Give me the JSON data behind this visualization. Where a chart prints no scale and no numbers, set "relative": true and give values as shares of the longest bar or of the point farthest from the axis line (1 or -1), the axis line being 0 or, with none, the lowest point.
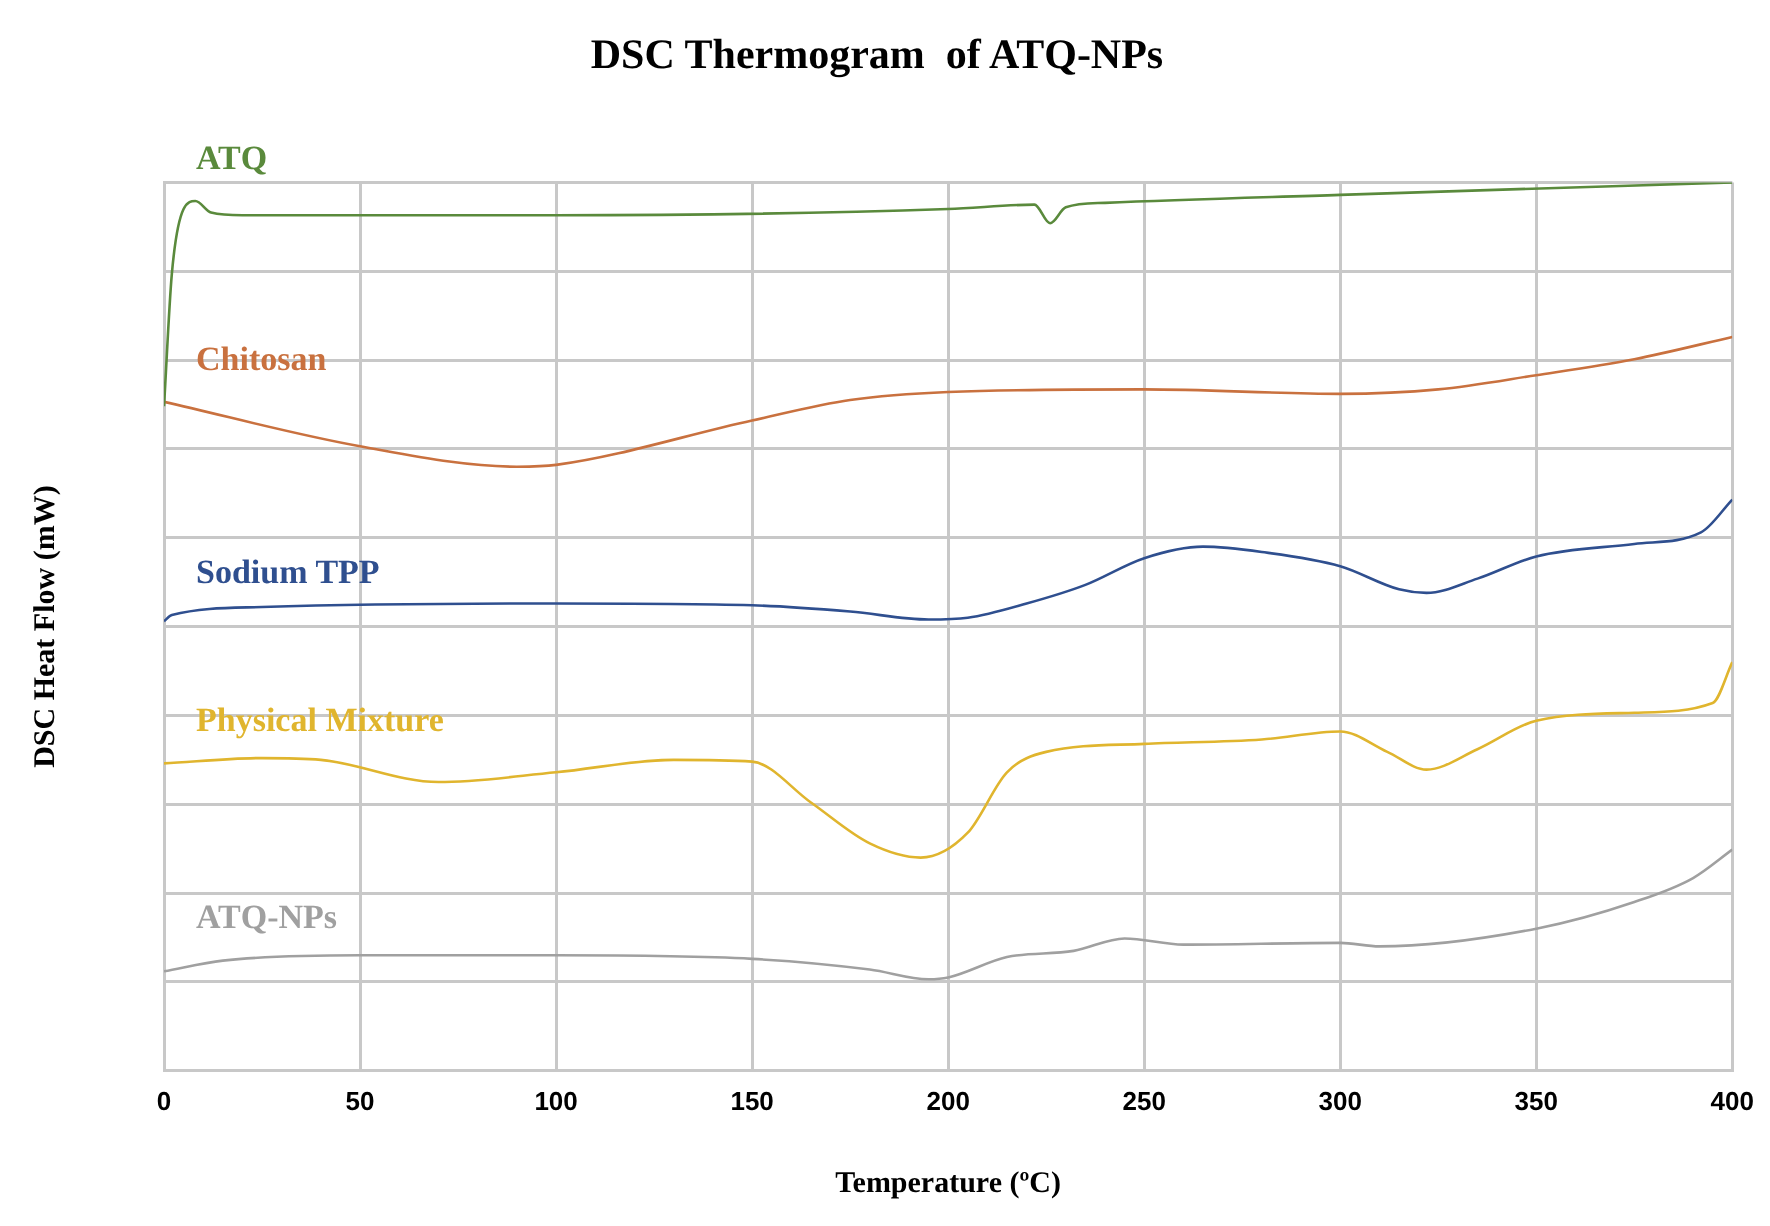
{
  "chart_data": {
    "type": "line",
    "title": "DSC Thermogram  of ATQ-NPs",
    "xlabel": "Temperature (ºC)",
    "ylabel": "DSC Heat Flow (mW)",
    "relative": true,
    "grid": true,
    "marker": "none",
    "line_style": "solid",
    "xlim": [
      0,
      400
    ],
    "xticks": [
      0,
      50,
      100,
      150,
      200,
      250,
      300,
      350,
      400
    ],
    "series": [
      {
        "name": "ATQ",
        "color": "#5a8a3c",
        "x": [
          0,
          2,
          5,
          8,
          12,
          20,
          100,
          200,
          222,
          226,
          230,
          240,
          300,
          400
        ],
        "values": [
          0.748,
          0.897,
          0.97,
          0.979,
          0.966,
          0.963,
          0.963,
          0.97,
          0.975,
          0.954,
          0.972,
          0.977,
          0.986,
          1.0
        ]
      },
      {
        "name": "Chitosan",
        "color": "#c9713f",
        "x": [
          0,
          50,
          90,
          100,
          150,
          175,
          200,
          250,
          300,
          325,
          350,
          375,
          400
        ],
        "values": [
          0.753,
          0.703,
          0.68,
          0.682,
          0.732,
          0.755,
          0.764,
          0.767,
          0.762,
          0.767,
          0.783,
          0.801,
          0.826
        ]
      },
      {
        "name": "Sodium TPP",
        "color": "#2f4f8f",
        "x": [
          0,
          2,
          25,
          100,
          150,
          175,
          195,
          205,
          220,
          235,
          250,
          265,
          280,
          300,
          315,
          322,
          335,
          350,
          375,
          392,
          400
        ],
        "values": [
          0.506,
          0.513,
          0.522,
          0.526,
          0.524,
          0.517,
          0.508,
          0.51,
          0.526,
          0.547,
          0.577,
          0.59,
          0.584,
          0.568,
          0.542,
          0.538,
          0.554,
          0.579,
          0.593,
          0.606,
          0.643
        ]
      },
      {
        "name": "Physical Mixture",
        "color": "#e0b52e",
        "x": [
          0,
          25,
          40,
          70,
          100,
          130,
          150,
          165,
          180,
          193,
          205,
          215,
          225,
          250,
          280,
          300,
          312,
          322,
          335,
          350,
          375,
          395,
          400
        ],
        "values": [
          0.346,
          0.352,
          0.35,
          0.325,
          0.336,
          0.35,
          0.348,
          0.302,
          0.256,
          0.24,
          0.268,
          0.336,
          0.359,
          0.368,
          0.373,
          0.382,
          0.359,
          0.339,
          0.362,
          0.394,
          0.403,
          0.414,
          0.46
        ]
      },
      {
        "name": "ATQ-NPs",
        "color": "#a0a0a0",
        "x": [
          0,
          15,
          50,
          100,
          150,
          180,
          195,
          200,
          215,
          232,
          245,
          260,
          300,
          310,
          350,
          375,
          390,
          400
        ],
        "values": [
          0.112,
          0.124,
          0.13,
          0.13,
          0.126,
          0.114,
          0.103,
          0.105,
          0.128,
          0.135,
          0.149,
          0.142,
          0.144,
          0.14,
          0.16,
          0.19,
          0.217,
          0.249
        ]
      }
    ]
  }
}
